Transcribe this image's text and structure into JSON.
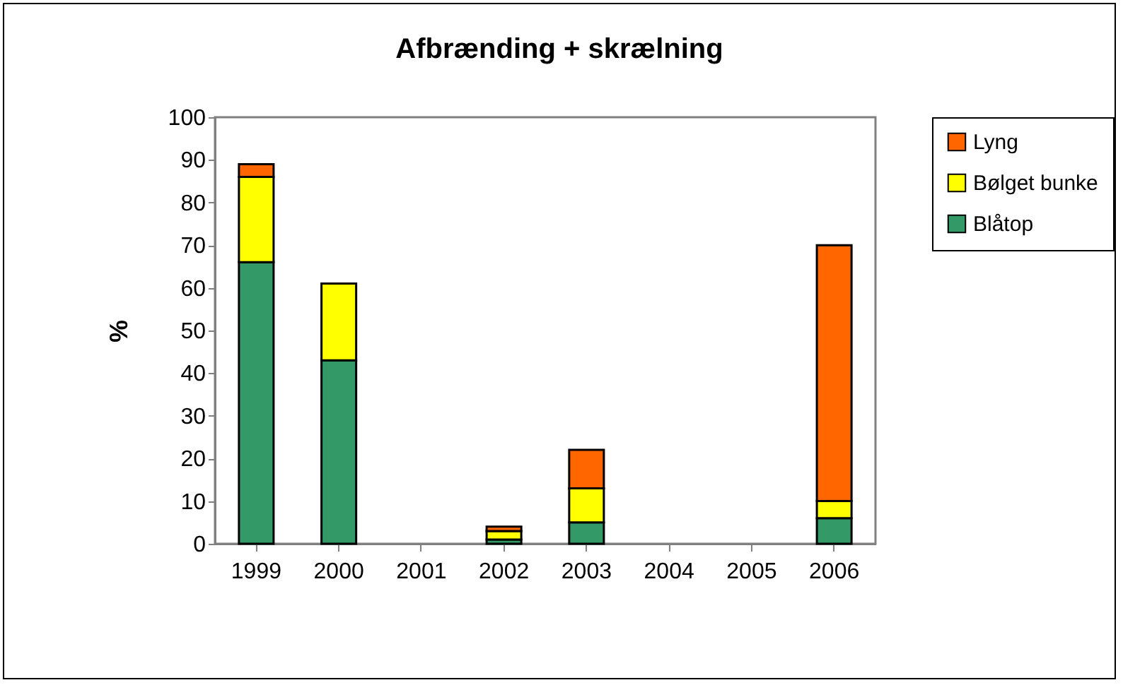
{
  "chart_data": {
    "type": "bar",
    "title": "Afbrænding + skrælning",
    "ylabel": "%",
    "stacked": true,
    "categories": [
      "1999",
      "2000",
      "2001",
      "2002",
      "2003",
      "2004",
      "2005",
      "2006"
    ],
    "series": [
      {
        "name": "Blåtop",
        "color": "#339966",
        "values": [
          66,
          43,
          null,
          1,
          5,
          null,
          null,
          6
        ]
      },
      {
        "name": "Bølget bunke",
        "color": "#ffff00",
        "values": [
          20,
          18,
          null,
          2,
          8,
          null,
          null,
          4
        ]
      },
      {
        "name": "Lyng",
        "color": "#ff6600",
        "values": [
          3,
          null,
          null,
          1,
          9,
          null,
          null,
          60
        ]
      }
    ],
    "ylim": [
      0,
      100
    ],
    "yticks": [
      0,
      10,
      20,
      30,
      40,
      50,
      60,
      70,
      80,
      90,
      100
    ],
    "grid": false,
    "legend": "right"
  }
}
